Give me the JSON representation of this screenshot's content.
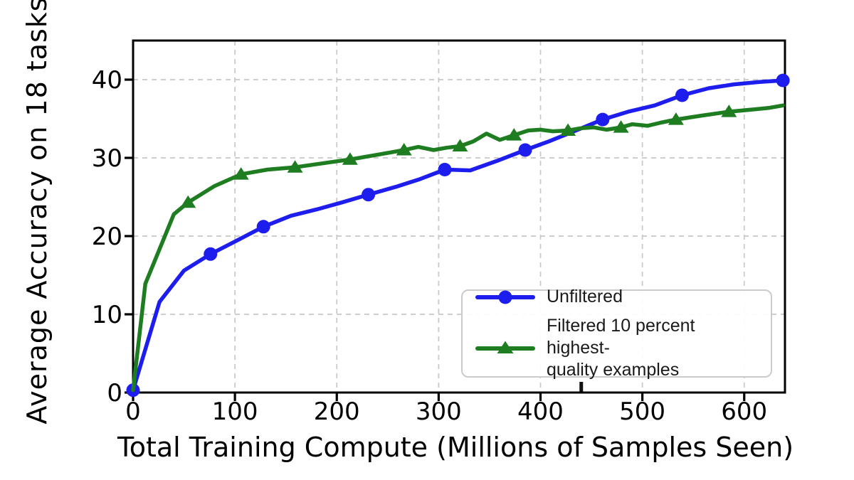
{
  "chart_data": {
    "type": "line",
    "title": "",
    "xlabel": "Total Training Compute (Millions of Samples Seen)",
    "ylabel": "Average Accuracy on 18 tasks",
    "xlim": [
      0,
      640
    ],
    "ylim": [
      0,
      45
    ],
    "xticks": [
      0,
      100,
      200,
      300,
      400,
      500,
      600
    ],
    "yticks": [
      0,
      10,
      20,
      30,
      40
    ],
    "grid": "dashed",
    "legend_position": "lower-right-inside",
    "axis_mark_x": 440,
    "colors": {
      "grid": "#c8c8c8",
      "axis": "#000000",
      "tick_text": "#000000",
      "legend_border": "#cbcbcb",
      "background": "#ffffff"
    },
    "series": [
      {
        "name": "Unfiltered",
        "color": "#1d1dee",
        "marker": "circle",
        "points": [
          [
            0,
            0.3
          ],
          [
            26,
            11.6
          ],
          [
            50,
            15.6
          ],
          [
            76,
            17.7
          ],
          [
            100,
            19.3
          ],
          [
            128,
            21.2
          ],
          [
            155,
            22.6
          ],
          [
            180,
            23.4
          ],
          [
            205,
            24.3
          ],
          [
            231,
            25.3
          ],
          [
            258,
            26.3
          ],
          [
            282,
            27.3
          ],
          [
            306,
            28.5
          ],
          [
            331,
            28.4
          ],
          [
            357,
            29.6
          ],
          [
            385,
            31.0
          ],
          [
            408,
            32.1
          ],
          [
            433,
            33.4
          ],
          [
            461,
            34.9
          ],
          [
            486,
            35.9
          ],
          [
            512,
            36.7
          ],
          [
            539,
            38.0
          ],
          [
            565,
            38.9
          ],
          [
            590,
            39.4
          ],
          [
            615,
            39.7
          ],
          [
            638,
            39.9
          ]
        ],
        "markers": [
          [
            0,
            0.3
          ],
          [
            76,
            17.7
          ],
          [
            128,
            21.2
          ],
          [
            231,
            25.3
          ],
          [
            306,
            28.5
          ],
          [
            385,
            31.0
          ],
          [
            461,
            34.9
          ],
          [
            539,
            38.0
          ],
          [
            638,
            39.9
          ]
        ]
      },
      {
        "name": "Filtered 10 percent highest-quality examples",
        "color": "#1e7d20",
        "marker": "triangle-up",
        "points": [
          [
            0,
            0.3
          ],
          [
            12,
            13.9
          ],
          [
            40,
            22.8
          ],
          [
            54,
            24.3
          ],
          [
            80,
            26.4
          ],
          [
            106,
            27.9
          ],
          [
            132,
            28.5
          ],
          [
            159,
            28.8
          ],
          [
            186,
            29.3
          ],
          [
            213,
            29.8
          ],
          [
            240,
            30.4
          ],
          [
            266,
            31.0
          ],
          [
            280,
            31.4
          ],
          [
            295,
            31.0
          ],
          [
            308,
            31.3
          ],
          [
            321,
            31.5
          ],
          [
            334,
            32.1
          ],
          [
            347,
            33.1
          ],
          [
            360,
            32.3
          ],
          [
            374,
            32.9
          ],
          [
            388,
            33.5
          ],
          [
            400,
            33.6
          ],
          [
            412,
            33.4
          ],
          [
            427,
            33.5
          ],
          [
            440,
            33.8
          ],
          [
            452,
            33.9
          ],
          [
            465,
            33.6
          ],
          [
            479,
            33.9
          ],
          [
            490,
            34.3
          ],
          [
            505,
            34.1
          ],
          [
            518,
            34.5
          ],
          [
            533,
            34.9
          ],
          [
            558,
            35.4
          ],
          [
            585,
            35.9
          ],
          [
            610,
            36.2
          ],
          [
            625,
            36.4
          ],
          [
            638,
            36.7
          ]
        ],
        "markers": [
          [
            54,
            24.3
          ],
          [
            106,
            27.9
          ],
          [
            159,
            28.8
          ],
          [
            213,
            29.8
          ],
          [
            266,
            31.0
          ],
          [
            321,
            31.5
          ],
          [
            374,
            32.9
          ],
          [
            427,
            33.5
          ],
          [
            479,
            33.9
          ],
          [
            533,
            34.9
          ],
          [
            585,
            35.9
          ]
        ]
      }
    ]
  },
  "legend": {
    "items": [
      {
        "label": "Unfiltered"
      },
      {
        "label": "Filtered 10 percent highest-\nquality examples"
      }
    ]
  }
}
